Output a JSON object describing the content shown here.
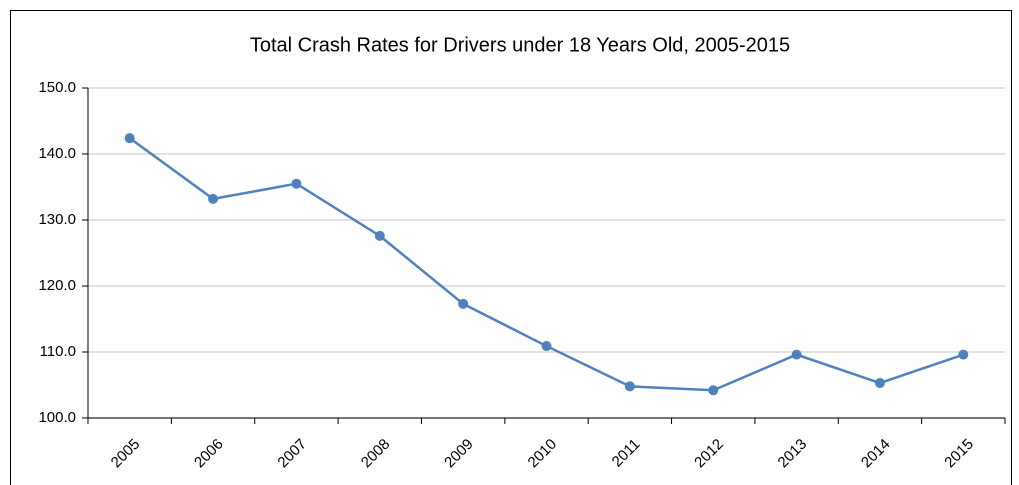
{
  "chart_data": {
    "type": "line",
    "title": "Total Crash Rates for Drivers under 18 Years Old, 2005-2015",
    "categories": [
      "2005",
      "2006",
      "2007",
      "2008",
      "2009",
      "2010",
      "2011",
      "2012",
      "2013",
      "2014",
      "2015"
    ],
    "series": [
      {
        "name": "Total Crash Rate",
        "color": "#4f81bd",
        "values": [
          142.4,
          133.2,
          135.5,
          127.6,
          117.3,
          110.9,
          104.8,
          104.2,
          109.6,
          105.3,
          109.6
        ]
      }
    ],
    "ylim": [
      100,
      150
    ],
    "yticks": [
      {
        "value": 100,
        "label": "100.0"
      },
      {
        "value": 110,
        "label": "110.0"
      },
      {
        "value": 120,
        "label": "120.0"
      },
      {
        "value": 130,
        "label": "130.0"
      },
      {
        "value": 140,
        "label": "140.0"
      },
      {
        "value": 150,
        "label": "150.0"
      }
    ],
    "grid": true
  }
}
